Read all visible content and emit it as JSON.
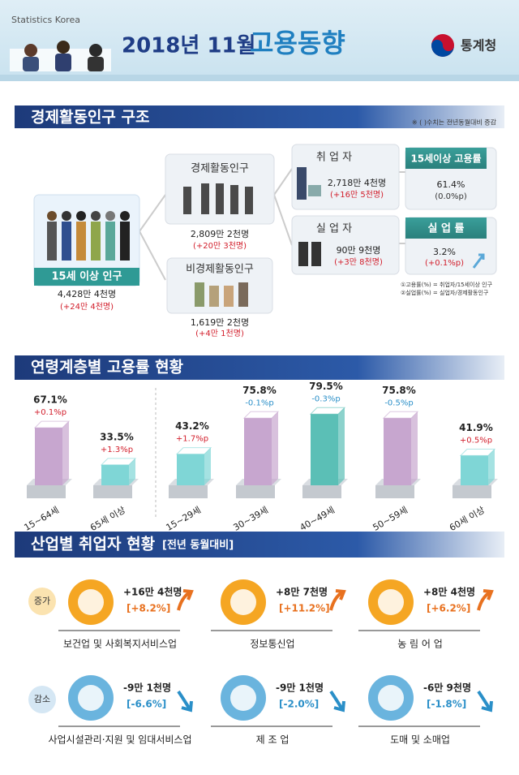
{
  "header": {
    "source": "Statistics Korea",
    "title": "2018년 11월",
    "title_emph": "고용동향",
    "logo": "통계청"
  },
  "structure": {
    "title": "경제활동인구 구조",
    "note": "※ ( )수치는 전년동월대비 증감",
    "population": {
      "label": "15세 이상 인구",
      "value": "4,428만 4천명",
      "change": "(+24만 4천명)"
    },
    "active": {
      "label": "경제활동인구",
      "value": "2,809만 2천명",
      "change": "(+20만 3천명)"
    },
    "inactive": {
      "label": "비경제활동인구",
      "value": "1,619만 2천명",
      "change": "(+4만 1천명)"
    },
    "employed": {
      "label": "취 업 자",
      "value": "2,718만 4천명",
      "change": "(+16만 5천명)"
    },
    "unemployed": {
      "label": "실 업 자",
      "value": "90만 9천명",
      "change": "(+3만 8천명)"
    },
    "employment_rate": {
      "label": "15세이상 고용률",
      "value": "61.4%",
      "change": "(0.0%p)"
    },
    "unemployment_rate": {
      "label": "실 업 률",
      "value": "3.2%",
      "change": "(+0.1%p)"
    },
    "footnotes": [
      "①고용률(%) = 취업자/15세이상 인구",
      "②실업률(%) = 실업자/경제활동인구"
    ]
  },
  "age": {
    "title": "연령계층별 고용률 현황",
    "categories": [
      "15~64세",
      "65세 이상",
      "15~29세",
      "30~39세",
      "40~49세",
      "50~59세",
      "60세 이상"
    ],
    "values": [
      67.1,
      33.5,
      43.2,
      75.8,
      79.5,
      75.8,
      41.9
    ],
    "value_labels": [
      "67.1%",
      "33.5%",
      "43.2%",
      "75.8%",
      "79.5%",
      "75.8%",
      "41.9%"
    ],
    "changes": [
      "+0.1%p",
      "+1.3%p",
      "+1.7%p",
      "-0.1%p",
      "-0.3%p",
      "-0.5%p",
      "+0.5%p"
    ],
    "colors": [
      "#c7a6cf",
      "#7fd6d6",
      "#7fd6d6",
      "#c7a6cf",
      "#5bbfb6",
      "#c7a6cf",
      "#7fd6d6"
    ]
  },
  "industry": {
    "title": "산업별 취업자 현황",
    "subtitle": "[전년 동월대비]",
    "increase_label": "증가",
    "decrease_label": "감소",
    "increase": [
      {
        "name": "보건업 및 사회복지서비스업",
        "change": "+16만 4천명",
        "rate": "[+8.2%]"
      },
      {
        "name": "정보통신업",
        "change": "+8만 7천명",
        "rate": "[+11.2%]"
      },
      {
        "name": "농 림 어 업",
        "change": "+8만 4천명",
        "rate": "[+6.2%]"
      }
    ],
    "decrease": [
      {
        "name": "사업시설관리·지원 및 임대서비스업",
        "change": "-9만 1천명",
        "rate": "[-6.6%]"
      },
      {
        "name": "제 조 업",
        "change": "-9만 1천명",
        "rate": "[-2.0%]"
      },
      {
        "name": "도매 및 소매업",
        "change": "-6만 9천명",
        "rate": "[-1.8%]"
      }
    ]
  }
}
